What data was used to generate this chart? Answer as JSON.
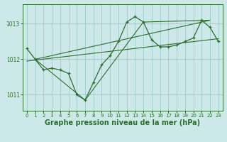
{
  "bg_color": "#cce8e8",
  "grid_color": "#99cccc",
  "line_color": "#2d6e2d",
  "marker_color": "#2d6e2d",
  "xlabel": "Graphe pression niveau de la mer (hPa)",
  "xlabel_fontsize": 7.0,
  "ylabel_values": [
    1011,
    1012,
    1013
  ],
  "xlim": [
    -0.5,
    23.5
  ],
  "ylim": [
    1010.55,
    1013.55
  ],
  "hours": [
    0,
    1,
    2,
    3,
    4,
    5,
    6,
    7,
    8,
    9,
    10,
    11,
    12,
    13,
    14,
    15,
    16,
    17,
    18,
    19,
    20,
    21,
    22,
    23
  ],
  "pressure": [
    1012.3,
    1012.0,
    1011.7,
    1011.75,
    1011.7,
    1011.6,
    1011.0,
    1010.85,
    1011.35,
    1011.85,
    1012.1,
    1012.5,
    1013.05,
    1013.2,
    1013.05,
    1012.55,
    1012.35,
    1012.35,
    1012.4,
    1012.5,
    1012.6,
    1013.1,
    1012.9,
    1012.5
  ],
  "trend_x": [
    0,
    23
  ],
  "trend_y": [
    1011.95,
    1012.58
  ],
  "envelope_x": [
    1,
    7,
    14,
    22,
    1
  ],
  "envelope_y": [
    1012.0,
    1010.85,
    1013.05,
    1013.1,
    1012.0
  ]
}
